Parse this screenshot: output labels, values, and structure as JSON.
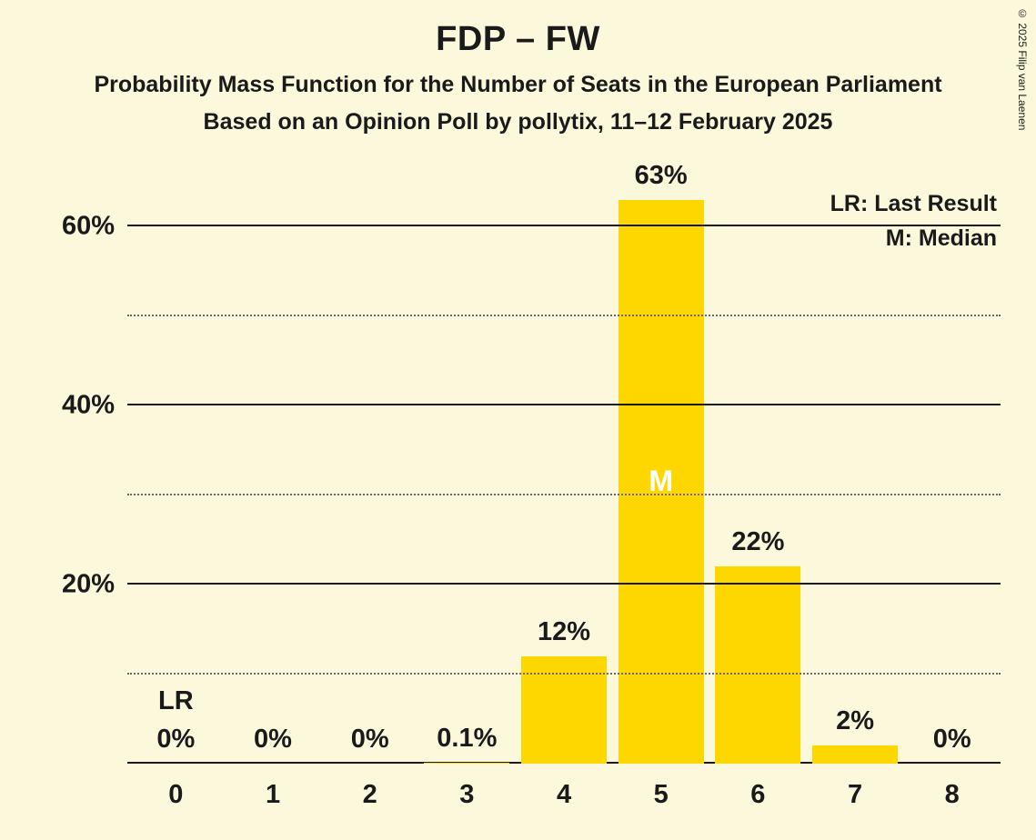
{
  "title": "FDP – FW",
  "subtitle_line1": "Probability Mass Function for the Number of Seats in the European Parliament",
  "subtitle_line2": "Based on an Opinion Poll by pollytix, 11–12 February 2025",
  "copyright": "© 2025 Filip van Laenen",
  "legend": {
    "lr": "LR: Last Result",
    "m": "M: Median"
  },
  "chart": {
    "type": "bar",
    "background_color": "#fbf8dc",
    "bar_color": "#ffd700",
    "axis_color": "#1a1a1a",
    "grid_minor_color": "#666666",
    "text_color": "#1a1a1a",
    "median_text_color": "#ffffff",
    "title_fontsize": 38,
    "subtitle_fontsize": 25,
    "tick_fontsize": 29,
    "barlabel_fontsize": 29,
    "legend_fontsize": 25,
    "bar_width_ratio": 0.88,
    "ylim": [
      0,
      65
    ],
    "y_major_ticks": [
      0,
      20,
      40,
      60
    ],
    "y_minor_ticks": [
      10,
      30,
      50
    ],
    "y_tick_labels": {
      "20": "20%",
      "40": "40%",
      "60": "60%"
    },
    "categories": [
      "0",
      "1",
      "2",
      "3",
      "4",
      "5",
      "6",
      "7",
      "8"
    ],
    "values": [
      0,
      0,
      0,
      0.1,
      12,
      63,
      22,
      2,
      0
    ],
    "value_labels": [
      "0%",
      "0%",
      "0%",
      "0.1%",
      "12%",
      "63%",
      "22%",
      "2%",
      "0%"
    ],
    "lr_index": 0,
    "lr_text": "LR",
    "median_index": 5,
    "median_text": "M"
  }
}
